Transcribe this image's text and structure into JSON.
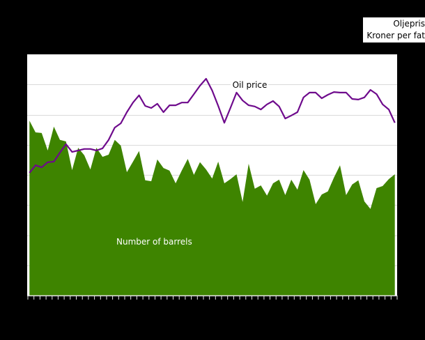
{
  "unit_label": {
    "line1": "Oljepris",
    "line2": "Kroner per fat"
  },
  "colors": {
    "background": "#000000",
    "plot_background": "#ffffff",
    "gridline": "#d9d9d9",
    "barrels_area": "#3e8400",
    "oil_price_line": "#6e0a8c",
    "barrels_label_text": "#ffffff",
    "oil_label_text": "#000000"
  },
  "chart_data": {
    "type": "area+line",
    "title": "",
    "xlabel": "",
    "ylabel": "",
    "y_axis_note": "Tick labels not visible; values read in gridline units (0 = baseline, 8 = top of plot)",
    "ylim": [
      0,
      8
    ],
    "grid": true,
    "gridlines_y": [
      1,
      2,
      3,
      4,
      5,
      6,
      7
    ],
    "x_tick_count": 62,
    "legend": "inline labels",
    "annotations": [
      {
        "text": "Oil price",
        "series": "Oil price"
      },
      {
        "text": "Number of barrels",
        "series": "Number of barrels"
      }
    ],
    "x": [
      0,
      1,
      2,
      3,
      4,
      5,
      6,
      7,
      8,
      9,
      10,
      11,
      12,
      13,
      14,
      15,
      16,
      17,
      18,
      19,
      20,
      21,
      22,
      23,
      24,
      25,
      26,
      27,
      28,
      29,
      30,
      31,
      32,
      33,
      34,
      35,
      36,
      37,
      38,
      39,
      40,
      41,
      42,
      43,
      44,
      45,
      46,
      47,
      48,
      49,
      50,
      51,
      52,
      53,
      54,
      55,
      56,
      57,
      58,
      59,
      60
    ],
    "series": [
      {
        "name": "Number of barrels",
        "type": "area",
        "values": [
          5.8,
          5.41,
          5.39,
          4.81,
          5.6,
          5.16,
          5.11,
          4.16,
          4.9,
          4.65,
          4.18,
          4.9,
          4.6,
          4.67,
          5.16,
          4.97,
          4.09,
          4.44,
          4.79,
          3.82,
          3.79,
          4.51,
          4.23,
          4.14,
          3.72,
          4.14,
          4.53,
          4.0,
          4.42,
          4.18,
          3.88,
          4.44,
          3.72,
          3.86,
          4.02,
          3.1,
          4.37,
          3.54,
          3.65,
          3.31,
          3.72,
          3.84,
          3.33,
          3.84,
          3.51,
          4.16,
          3.84,
          3.03,
          3.35,
          3.45,
          3.91,
          4.32,
          3.33,
          3.68,
          3.82,
          3.12,
          2.87,
          3.56,
          3.63,
          3.86,
          4.02
        ]
      },
      {
        "name": "Oil price",
        "type": "line",
        "values": [
          4.07,
          4.32,
          4.25,
          4.42,
          4.44,
          4.74,
          5.02,
          4.76,
          4.81,
          4.86,
          4.86,
          4.81,
          4.88,
          5.16,
          5.57,
          5.71,
          6.08,
          6.4,
          6.64,
          6.29,
          6.22,
          6.36,
          6.08,
          6.31,
          6.31,
          6.4,
          6.4,
          6.68,
          6.96,
          7.19,
          6.8,
          6.29,
          5.73,
          6.22,
          6.73,
          6.47,
          6.31,
          6.27,
          6.17,
          6.34,
          6.45,
          6.27,
          5.87,
          5.97,
          6.08,
          6.57,
          6.73,
          6.73,
          6.54,
          6.66,
          6.75,
          6.73,
          6.73,
          6.52,
          6.5,
          6.57,
          6.82,
          6.68,
          6.34,
          6.17,
          5.73
        ]
      }
    ]
  }
}
